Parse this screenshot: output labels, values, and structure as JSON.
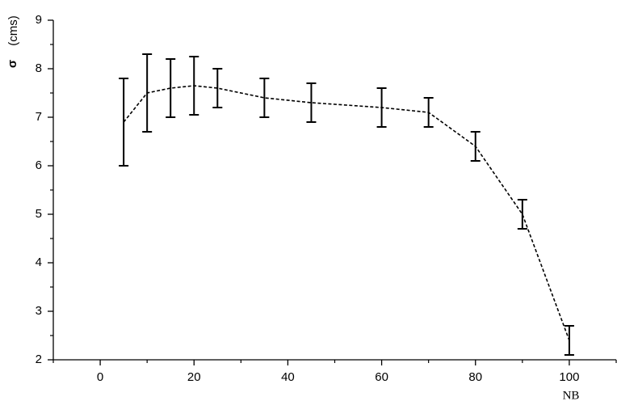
{
  "chart_data": {
    "type": "errorbar-line",
    "ylabel": "σ",
    "ylabel_unit": "(cms)",
    "xlabel": "NB",
    "x": [
      5,
      10,
      15,
      20,
      25,
      35,
      45,
      60,
      70,
      80,
      90,
      100
    ],
    "series": [
      {
        "color": "#000000",
        "values": [
          6.9,
          7.5,
          7.6,
          7.65,
          7.6,
          7.4,
          7.3,
          7.2,
          7.1,
          6.4,
          5.0,
          2.4
        ],
        "errors": [
          0.9,
          0.8,
          0.6,
          0.6,
          0.4,
          0.4,
          0.4,
          0.4,
          0.3,
          0.3,
          0.3,
          0.3
        ]
      }
    ],
    "xlim": [
      -10,
      110
    ],
    "ylim": [
      2,
      9
    ],
    "xticks": [
      0,
      20,
      40,
      60,
      80,
      100
    ],
    "xminorticks": [
      -10,
      10,
      30,
      50,
      70,
      90,
      110
    ],
    "yticks": [
      2,
      3,
      4,
      5,
      6,
      7,
      8,
      9
    ],
    "yminorticks": [
      2.5,
      3.5,
      4.5,
      5.5,
      6.5,
      7.5,
      8.5
    ]
  }
}
